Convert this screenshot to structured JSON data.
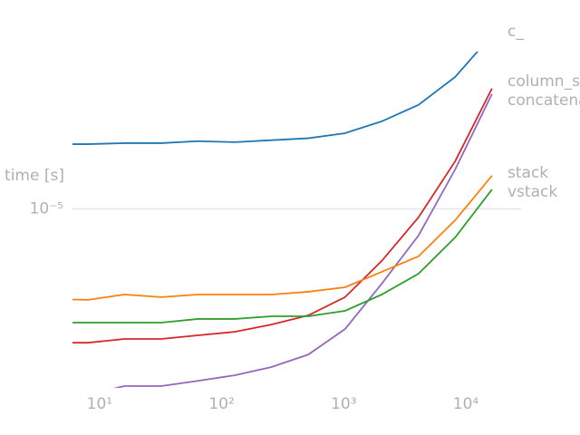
{
  "chart_data": {
    "type": "line",
    "ylabel": "time [s]",
    "xscale": "log",
    "yscale": "log",
    "grid": true,
    "x": [
      4,
      8,
      16,
      32,
      64,
      128,
      256,
      512,
      1024,
      2048,
      4096,
      8192,
      16384
    ],
    "xlim": [
      6,
      28370
    ],
    "ylim": [
      1.6e-06,
      5e-05
    ],
    "xticks": [
      {
        "value": 10,
        "label": "10¹"
      },
      {
        "value": 100,
        "label": "10²"
      },
      {
        "value": 1000,
        "label": "10³"
      },
      {
        "value": 10000,
        "label": "10⁴"
      }
    ],
    "yticks": [
      {
        "value": 1e-05,
        "label": "10⁻⁵"
      }
    ],
    "series": [
      {
        "name": "c_",
        "color": "#1f77b4",
        "values": [
          1.94e-05,
          1.94e-05,
          1.96e-05,
          1.96e-05,
          2e-05,
          1.98e-05,
          2.02e-05,
          2.06e-05,
          2.17e-05,
          2.45e-05,
          2.9e-05,
          3.86e-05,
          5.93e-05
        ]
      },
      {
        "name": "column_stack",
        "color": "#d62728",
        "values": [
          2.54e-06,
          2.54e-06,
          2.64e-06,
          2.64e-06,
          2.74e-06,
          2.84e-06,
          3.06e-06,
          3.36e-06,
          4.05e-06,
          5.87e-06,
          9.17e-06,
          1.63e-05,
          3.43e-05
        ]
      },
      {
        "name": "concatenate",
        "color": "#9467bd",
        "values": [
          1.43e-06,
          1.49e-06,
          1.63e-06,
          1.63e-06,
          1.72e-06,
          1.82e-06,
          1.98e-06,
          2.25e-06,
          2.92e-06,
          4.65e-06,
          7.61e-06,
          1.5e-05,
          3.24e-05
        ]
      },
      {
        "name": "stack",
        "color": "#ff7f0e",
        "values": [
          3.97e-06,
          3.94e-06,
          4.16e-06,
          4.05e-06,
          4.16e-06,
          4.16e-06,
          4.16e-06,
          4.28e-06,
          4.48e-06,
          5.25e-06,
          6.15e-06,
          8.91e-06,
          1.405e-05
        ]
      },
      {
        "name": "vstack",
        "color": "#2ca02c",
        "values": [
          3.12e-06,
          3.12e-06,
          3.12e-06,
          3.12e-06,
          3.24e-06,
          3.24e-06,
          3.33e-06,
          3.33e-06,
          3.52e-06,
          4.16e-06,
          5.15e-06,
          7.47e-06,
          1.22e-05
        ]
      }
    ]
  }
}
